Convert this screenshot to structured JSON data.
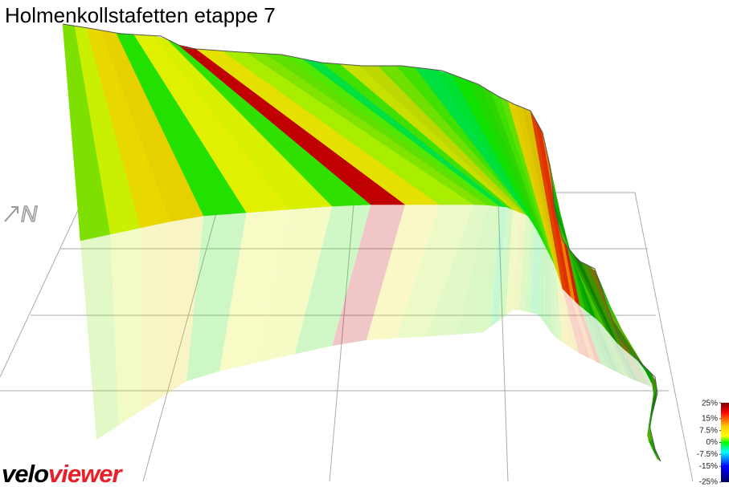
{
  "title": "Holmenkollstafetten etappe 7",
  "compass": {
    "label": "N"
  },
  "logo": {
    "part1": "velo",
    "part2": "viewer"
  },
  "gradient_scale": {
    "lim": [
      -25,
      25
    ],
    "ticks": [
      {
        "value": 25,
        "label": "25%"
      },
      {
        "value": 15,
        "label": "15%"
      },
      {
        "value": 7.5,
        "label": "7.5%"
      },
      {
        "value": 0,
        "label": "0%"
      },
      {
        "value": -7.5,
        "label": "-7.5%"
      },
      {
        "value": -15,
        "label": "-15%"
      },
      {
        "value": -25,
        "label": "-25%"
      }
    ]
  }
}
